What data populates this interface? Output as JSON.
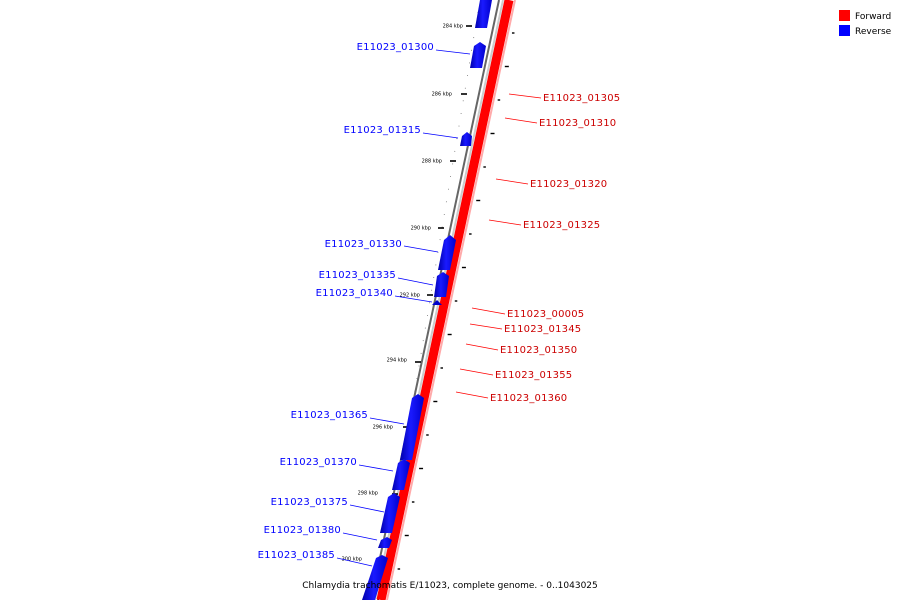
{
  "legend": [
    {
      "label": "Forward",
      "color": "#ff0000"
    },
    {
      "label": "Reverse",
      "color": "#0000ff"
    }
  ],
  "caption": "Chlamydia trachomatis E/11023, complete genome. - 0..1043025",
  "scale_ticks": [
    "284 kbp",
    "286 kbp",
    "288 kbp",
    "290 kbp",
    "292 kbp",
    "294 kbp",
    "296 kbp",
    "298 kbp",
    "300 kbp"
  ],
  "forward_genes": [
    "E11023_01305",
    "E11023_01310",
    "E11023_01320",
    "E11023_01325",
    "E11023_00005",
    "E11023_01345",
    "E11023_01350",
    "E11023_01355",
    "E11023_01360"
  ],
  "reverse_genes": [
    "E11023_01300",
    "E11023_01315",
    "E11023_01330",
    "E11023_01335",
    "E11023_01340",
    "E11023_01365",
    "E11023_01370",
    "E11023_01375",
    "E11023_01380",
    "E11023_01385"
  ],
  "colors": {
    "forward": "#ff0000",
    "reverse": "#0000ff",
    "backbone": "#777777"
  }
}
